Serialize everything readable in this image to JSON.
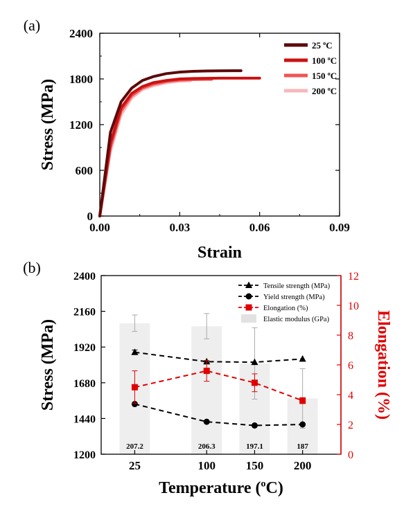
{
  "chart_data": [
    {
      "panel_label": "(a)",
      "type": "line",
      "xlabel": "Strain",
      "ylabel": "Stress (MPa)",
      "xlim": [
        0,
        0.09
      ],
      "ylim": [
        0,
        2400
      ],
      "x_ticks": [
        "0.00",
        "0.03",
        "0.06",
        "0.09"
      ],
      "y_ticks": [
        "0",
        "600",
        "1200",
        "1800",
        "2400"
      ],
      "legend_position": "top-right",
      "series": [
        {
          "name": "25 °C",
          "color": "#5c0a0a",
          "x": [
            0,
            0.004,
            0.008,
            0.012,
            0.016,
            0.02,
            0.025,
            0.03,
            0.035,
            0.04,
            0.045,
            0.05,
            0.053
          ],
          "y": [
            0,
            1100,
            1500,
            1680,
            1780,
            1830,
            1870,
            1890,
            1900,
            1905,
            1907,
            1908,
            1908
          ]
        },
        {
          "name": "100 °C",
          "color": "#cc1111",
          "x": [
            0,
            0.004,
            0.008,
            0.012,
            0.016,
            0.02,
            0.025,
            0.03,
            0.035,
            0.04,
            0.045,
            0.05,
            0.055,
            0.06
          ],
          "y": [
            0,
            960,
            1420,
            1610,
            1700,
            1750,
            1780,
            1800,
            1805,
            1808,
            1810,
            1810,
            1810,
            1810
          ]
        },
        {
          "name": "150 °C",
          "color": "#ee5555",
          "x": [
            0,
            0.004,
            0.008,
            0.012,
            0.016,
            0.02,
            0.025,
            0.03,
            0.035,
            0.04,
            0.042
          ],
          "y": [
            0,
            900,
            1380,
            1580,
            1680,
            1730,
            1765,
            1785,
            1792,
            1795,
            1795
          ]
        },
        {
          "name": "200 °C",
          "color": "#f7b8bb",
          "x": [
            0,
            0.004,
            0.008,
            0.012,
            0.016,
            0.02,
            0.025,
            0.03,
            0.034
          ],
          "y": [
            0,
            850,
            1330,
            1550,
            1660,
            1710,
            1750,
            1770,
            1775
          ]
        }
      ]
    },
    {
      "panel_label": "(b)",
      "type": "bar",
      "xlabel": "Temperature (°C)",
      "ylabel": "Stress (MPa)",
      "y2label": "Elongation (%)",
      "categories": [
        "25",
        "100",
        "150",
        "200"
      ],
      "x_positions": [
        25,
        100,
        150,
        200
      ],
      "xlim": [
        -10,
        240
      ],
      "ylim": [
        1200,
        2400
      ],
      "y2lim": [
        0,
        12
      ],
      "y_ticks": [
        "1200",
        "1440",
        "1680",
        "1920",
        "2160",
        "2400"
      ],
      "y2_ticks": [
        "0",
        "2",
        "4",
        "6",
        "8",
        "10",
        "12"
      ],
      "legend_position": "top-right",
      "series": [
        {
          "name": "Tensile strength (MPa)",
          "kind": "line",
          "marker": "triangle",
          "color": "#000000",
          "values": [
            1885,
            1822,
            1818,
            1840
          ],
          "errors": [
            15,
            0,
            0,
            0
          ]
        },
        {
          "name": "Yield strength (MPa)",
          "kind": "line",
          "marker": "circle",
          "color": "#000000",
          "values": [
            1537,
            1418,
            1393,
            1400
          ],
          "errors": [
            0,
            0,
            0,
            0
          ]
        },
        {
          "name": "Elongation (%)",
          "kind": "line",
          "marker": "square",
          "color": "#e00000",
          "axis": "right",
          "values": [
            4.5,
            5.6,
            4.8,
            3.6
          ],
          "errors": [
            1.1,
            0.7,
            0.6,
            0.2
          ]
        },
        {
          "name": "Elastic modulus (GPa)",
          "kind": "bar",
          "color": "#eeeeee",
          "values": [
            207.2,
            206.3,
            197.1,
            187
          ],
          "bar_stress_equiv": [
            2080,
            2060,
            1810,
            1575
          ],
          "bar_errors": [
            55,
            85,
            240,
            200
          ]
        }
      ],
      "bar_labels": [
        "207.2",
        "206.3",
        "197.1",
        "187"
      ]
    }
  ]
}
